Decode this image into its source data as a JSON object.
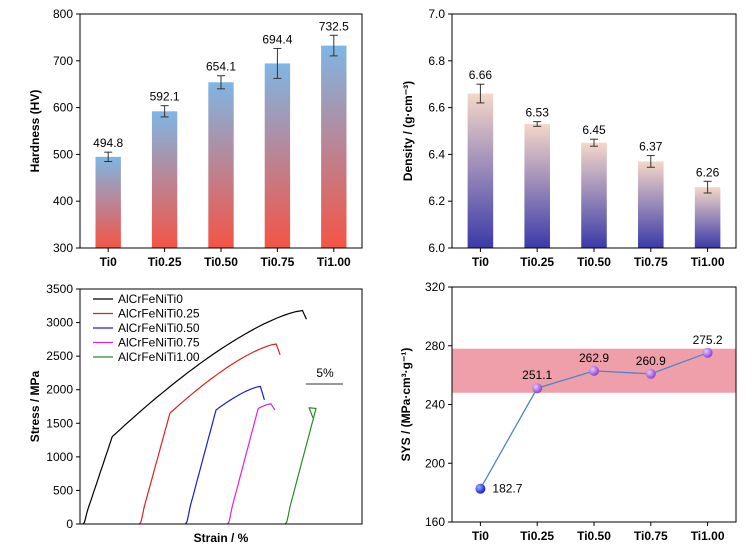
{
  "chart_data": [
    {
      "id": "hardness",
      "type": "bar",
      "categories": [
        "Ti0",
        "Ti0.25",
        "Ti0.50",
        "Ti0.75",
        "Ti1.00"
      ],
      "values": [
        494.8,
        592.1,
        654.1,
        694.4,
        732.5
      ],
      "errors": [
        10,
        12,
        14,
        32,
        22
      ],
      "value_labels": [
        "494.8",
        "592.1",
        "654.1",
        "694.4",
        "732.5"
      ],
      "ylabel": "Hardness (HV)",
      "ylim": [
        300,
        800
      ],
      "yticks": [
        "300",
        "400",
        "500",
        "600",
        "700",
        "800"
      ],
      "bar_gradient": {
        "top": "#7fb6e4",
        "bottom": "#f45445"
      }
    },
    {
      "id": "density",
      "type": "bar",
      "categories": [
        "Ti0",
        "Ti0.25",
        "Ti0.50",
        "Ti0.75",
        "Ti1.00"
      ],
      "values": [
        6.66,
        6.53,
        6.45,
        6.37,
        6.26
      ],
      "errors": [
        0.04,
        0.01,
        0.015,
        0.025,
        0.025
      ],
      "value_labels": [
        "6.66",
        "6.53",
        "6.45",
        "6.37",
        "6.26"
      ],
      "ylabel": "Density / (g·cm⁻³)",
      "ylim": [
        6.0,
        7.0
      ],
      "yticks": [
        "6.0",
        "6.2",
        "6.4",
        "6.6",
        "6.8",
        "7.0"
      ],
      "bar_gradient": {
        "top": "#f5d7c8",
        "bottom": "#3a3aa8"
      }
    },
    {
      "id": "stress-strain",
      "type": "line",
      "xlabel": "Strain / %",
      "ylabel": "Stress / MPa",
      "ylim": [
        0,
        3500
      ],
      "yticks": [
        "0",
        "500",
        "1000",
        "1500",
        "2000",
        "2500",
        "3000",
        "3500"
      ],
      "legend_position": "top-left",
      "scale_bar_label": "5%",
      "series": [
        {
          "name": "AlCrFeNiTi0",
          "color": "#000000",
          "offset": 0,
          "yield": 1300,
          "peak": 3180,
          "end": 3050,
          "strain_span": 17.0
        },
        {
          "name": "AlCrFeNiTi0.25",
          "color": "#e02020",
          "offset": 4.3,
          "yield": 1650,
          "peak": 2680,
          "end": 2520,
          "strain_span": 10.7
        },
        {
          "name": "AlCrFeNiTi0.50",
          "color": "#1c1ccc",
          "offset": 7.8,
          "yield": 1700,
          "peak": 2050,
          "end": 1850,
          "strain_span": 6.0
        },
        {
          "name": "AlCrFeNiTi0.75",
          "color": "#e020e0",
          "offset": 11.0,
          "yield": 1720,
          "peak": 1790,
          "end": 1700,
          "strain_span": 3.6
        },
        {
          "name": "AlCrFeNiTi1.00",
          "color": "#2a8a2a",
          "offset": 15.4,
          "yield": 1720,
          "peak": 1730,
          "end": 1580,
          "strain_span": 2.1
        }
      ]
    },
    {
      "id": "sys",
      "type": "line",
      "categories": [
        "Ti0",
        "Ti0.25",
        "Ti0.50",
        "Ti0.75",
        "Ti1.00"
      ],
      "values": [
        182.7,
        251.1,
        262.9,
        260.9,
        275.2
      ],
      "value_labels": [
        "182.7",
        "251.1",
        "262.9",
        "260.9",
        "275.2"
      ],
      "ylabel": "SYS / (MPa·cm³·g⁻¹)",
      "ylim": [
        160,
        320
      ],
      "yticks": [
        "160",
        "200",
        "240",
        "280",
        "320"
      ],
      "highlight_band": [
        248,
        278
      ],
      "band_color": "#ec8e9b",
      "line_color": "#4a86c8",
      "marker_colors": [
        "#1010c8",
        "#9a4ad8",
        "#9a4ad8",
        "#9a4ad8",
        "#9a4ad8"
      ]
    }
  ]
}
